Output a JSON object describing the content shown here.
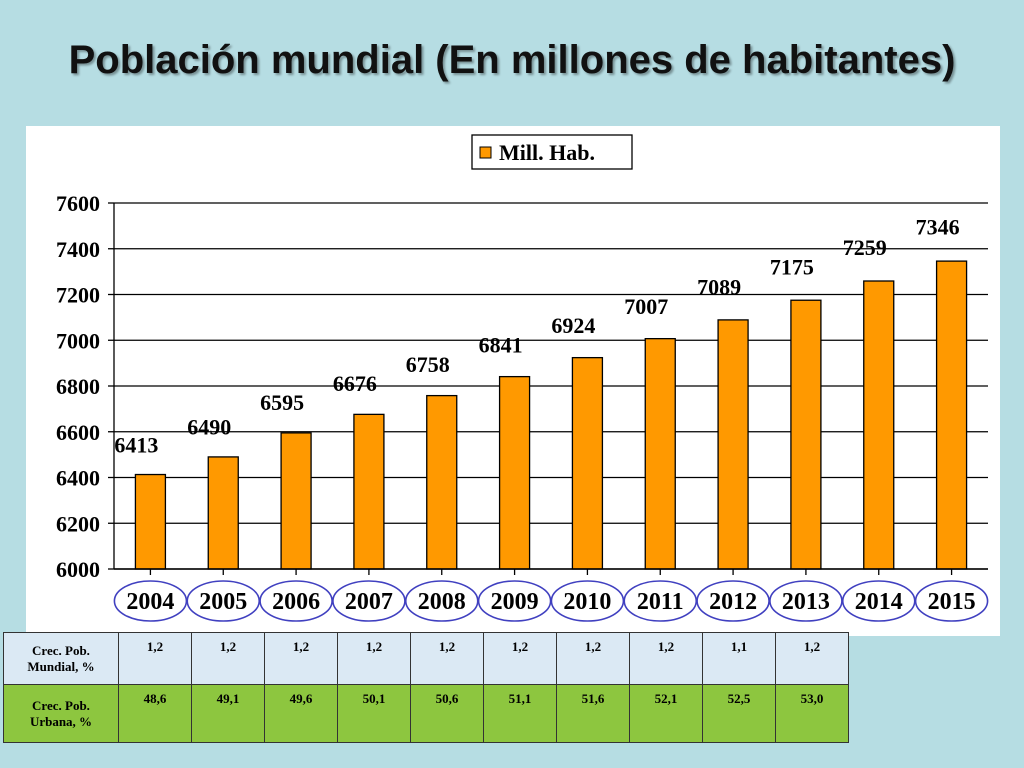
{
  "slide": {
    "title": "Población mundial (En millones de habitantes)"
  },
  "colors": {
    "background": "#b6dde3",
    "bar": "#ff9900",
    "circle": "#4040c0",
    "row_growth": "#dbe9f4",
    "row_urban": "#8dc63f"
  },
  "chart_data": {
    "type": "bar",
    "title": "",
    "xlabel": "",
    "ylabel": "",
    "categories": [
      "2004",
      "2005",
      "2006",
      "2007",
      "2008",
      "2009",
      "2010",
      "2011",
      "2012",
      "2013",
      "2014",
      "2015"
    ],
    "series": [
      {
        "name": "Mill. Hab.",
        "values": [
          6413,
          6490,
          6595,
          6676,
          6758,
          6841,
          6924,
          7007,
          7089,
          7175,
          7259,
          7346
        ]
      }
    ],
    "ylim": [
      6000,
      7600
    ],
    "yticks": [
      6000,
      6200,
      6400,
      6600,
      6800,
      7000,
      7200,
      7400,
      7600
    ],
    "grid": true,
    "legend": "top-right",
    "data_labels": true
  },
  "table": {
    "rows": [
      {
        "label": "Crec. Pob. Mundial, %",
        "values": [
          "1,2",
          "1,2",
          "1,2",
          "1,2",
          "1,2",
          "1,2",
          "1,2",
          "1,2",
          "1,1",
          "1,2"
        ]
      },
      {
        "label": "Crec. Pob. Urbana, %",
        "values": [
          "48,6",
          "49,1",
          "49,6",
          "50,1",
          "50,6",
          "51,1",
          "51,6",
          "52,1",
          "52,5",
          "53,0"
        ]
      }
    ]
  }
}
